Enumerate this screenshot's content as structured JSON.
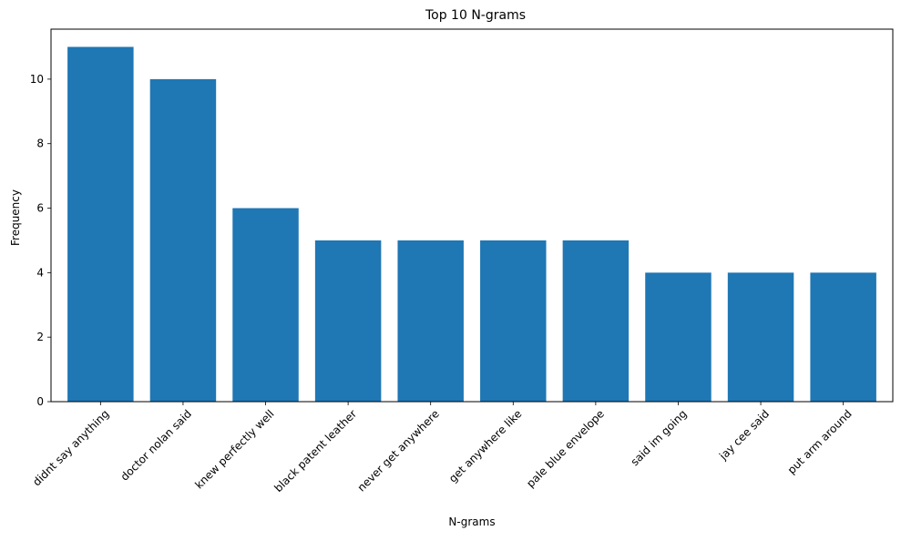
{
  "chart_data": {
    "type": "bar",
    "title": "Top 10 N-grams",
    "xlabel": "N-grams",
    "ylabel": "Frequency",
    "categories": [
      "didnt say anything",
      "doctor nolan said",
      "knew perfectly well",
      "black patent leather",
      "never get anywhere",
      "get anywhere like",
      "pale blue envelope",
      "said im going",
      "jay cee said",
      "put arm around"
    ],
    "values": [
      11,
      10,
      6,
      5,
      5,
      5,
      5,
      4,
      4,
      4
    ],
    "ylim": [
      0,
      11.55
    ],
    "yticks": [
      0,
      2,
      4,
      6,
      8,
      10
    ],
    "grid": false,
    "legend": "none",
    "bar_color": "#1f77b4",
    "x_tick_rotation_deg": 45
  }
}
